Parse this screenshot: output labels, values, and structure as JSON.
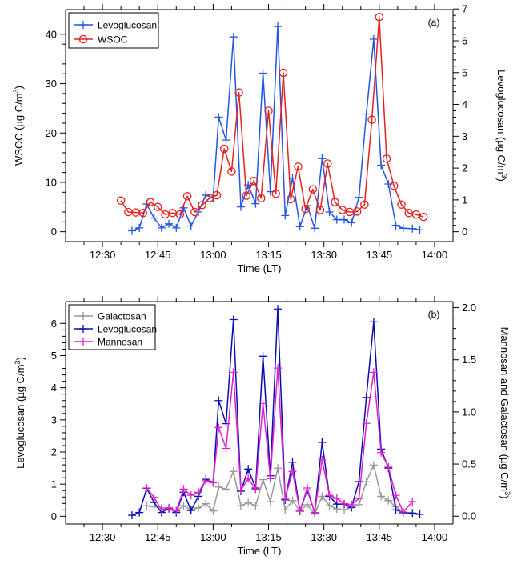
{
  "chart_data": [
    {
      "panel": "(a)",
      "type": "line",
      "xlabel": "Time (LT)",
      "ylabel_left": "WSOC (µg C/m3)",
      "ylabel_right": "Levoglucosan (µg C/m3)",
      "ylabel_left_parts": {
        "pre": "WSOC (",
        "mu": "µ",
        "mid": "g C/m",
        "sup": "3",
        "post": ")"
      },
      "ylabel_right_parts": {
        "pre": "Levoglucosan (",
        "mu": "µ",
        "mid": "g C/m",
        "sup": "3",
        "post": ")"
      },
      "xlim": [
        740,
        845
      ],
      "ylim_left": [
        -2,
        45
      ],
      "ylim_right": [
        -0.31,
        6.98
      ],
      "xticks": [
        {
          "v": 750,
          "label": "12:30"
        },
        {
          "v": 765,
          "label": "12:45"
        },
        {
          "v": 780,
          "label": "13:00"
        },
        {
          "v": 795,
          "label": "13:15"
        },
        {
          "v": 810,
          "label": "13:30"
        },
        {
          "v": 825,
          "label": "13:45"
        },
        {
          "v": 840,
          "label": "14:00"
        }
      ],
      "xticks_minor": [
        745,
        755,
        760,
        770,
        775,
        785,
        790,
        800,
        805,
        815,
        820,
        830,
        835
      ],
      "yticks_left": [
        0,
        10,
        20,
        30,
        40
      ],
      "yticks_right": [
        0,
        1,
        2,
        3,
        4,
        5,
        6,
        7
      ],
      "legend_position": "top-left",
      "series": [
        {
          "name": "Levoglucosan",
          "axis": "right",
          "marker": "plus",
          "color": "#2255e8",
          "x": [
            758,
            760,
            762,
            764,
            766,
            768,
            770,
            772,
            774,
            776,
            778,
            780,
            781.5,
            783.5,
            785.5,
            787.5,
            789.5,
            791.5,
            793.5,
            795.5,
            797.5,
            799.5,
            801.5,
            803.5,
            805.5,
            807.5,
            809.5,
            811.5,
            813.5,
            815.5,
            817.5,
            819.5,
            821.5,
            823.5,
            825.5,
            827.5,
            829.5,
            831.5,
            834,
            836
          ],
          "y": [
            0.03,
            0.12,
            0.87,
            0.43,
            0.12,
            0.25,
            0.12,
            0.75,
            0.18,
            0.62,
            1.15,
            1.06,
            3.6,
            2.88,
            6.12,
            0.78,
            1.47,
            0.88,
            4.98,
            1.26,
            6.45,
            0.51,
            1.68,
            0.16,
            0.82,
            0.11,
            2.3,
            0.62,
            0.38,
            0.38,
            0.28,
            1.08,
            3.7,
            6.05,
            2.09,
            1.5,
            0.2,
            0.11,
            0.1,
            0.06
          ]
        },
        {
          "name": "WSOC",
          "axis": "left",
          "marker": "circle",
          "color": "#e8201e",
          "x": [
            755,
            757,
            759,
            761,
            763,
            765,
            767,
            769,
            771,
            773,
            775,
            777,
            779,
            781,
            783,
            785,
            787,
            789,
            791,
            793,
            795,
            797,
            799,
            801,
            803,
            805,
            807,
            809,
            811,
            813,
            815,
            817,
            819,
            821,
            823,
            825,
            827,
            829,
            831,
            833,
            835,
            837
          ],
          "y": [
            6.3,
            4.0,
            3.9,
            3.8,
            6.0,
            5.0,
            3.5,
            3.8,
            3.5,
            7.2,
            4.0,
            5.4,
            6.8,
            7.4,
            16.8,
            12.2,
            28.2,
            7.3,
            10.3,
            6.8,
            24.5,
            7.7,
            32.2,
            6.6,
            13.2,
            4.6,
            8.6,
            4.4,
            13.8,
            6.0,
            4.4,
            4.0,
            4.1,
            5.5,
            22.7,
            43.5,
            14.8,
            9.3,
            5.5,
            3.8,
            3.5,
            3.0
          ]
        }
      ]
    },
    {
      "panel": "(b)",
      "type": "line",
      "xlabel": "Time (LT)",
      "ylabel_left": "Levoglucosan (µg C/m3)",
      "ylabel_right": "Mannosan and Galactosan (µg C/m3)",
      "ylabel_left_parts": {
        "pre": "Levoglucosan (",
        "mu": "µ",
        "mid": "g C/m",
        "sup": "3",
        "post": ")"
      },
      "ylabel_right_parts": {
        "pre": "Mannosan and Galactosan (",
        "mu": "µ",
        "mid": "g C/m",
        "sup": "3",
        "post": ")"
      },
      "xlim": [
        740,
        845
      ],
      "ylim_left": [
        -0.24,
        6.68
      ],
      "ylim_right": [
        -0.075,
        2.058
      ],
      "xticks": [
        {
          "v": 750,
          "label": "12:30"
        },
        {
          "v": 765,
          "label": "12:45"
        },
        {
          "v": 780,
          "label": "13:00"
        },
        {
          "v": 795,
          "label": "13:15"
        },
        {
          "v": 810,
          "label": "13:30"
        },
        {
          "v": 825,
          "label": "13:45"
        },
        {
          "v": 840,
          "label": "14:00"
        }
      ],
      "xticks_minor": [
        745,
        755,
        760,
        770,
        775,
        785,
        790,
        800,
        805,
        815,
        820,
        830,
        835
      ],
      "yticks_left": [
        0,
        1,
        2,
        3,
        4,
        5,
        6
      ],
      "yticks_right": [
        {
          "v": 0,
          "label": "0.0"
        },
        {
          "v": 0.5,
          "label": "0.5"
        },
        {
          "v": 1.0,
          "label": "1.0"
        },
        {
          "v": 1.5,
          "label": "1.5"
        },
        {
          "v": 2.0,
          "label": "2.0"
        }
      ],
      "legend_position": "top-left",
      "series": [
        {
          "name": "Galactosan",
          "axis": "right",
          "marker": "plus",
          "color": "#999999",
          "x": [
            762,
            764,
            766,
            768,
            770,
            772,
            774,
            776,
            778,
            780,
            781.5,
            783.5,
            785.5,
            787.5,
            789.5,
            791.5,
            793.5,
            795.5,
            797.5,
            799.5,
            801.5,
            803.5,
            805.5,
            807.5,
            809.5,
            811.5,
            813.5,
            815.5,
            817.5,
            819.5,
            821.5,
            823.5,
            825.5,
            827.5,
            829.5,
            831.5
          ],
          "y": [
            0.1,
            0.09,
            0.08,
            0.07,
            0.05,
            0.1,
            0.06,
            0.08,
            0.12,
            0.05,
            0.28,
            0.26,
            0.43,
            0.1,
            0.13,
            0.1,
            0.35,
            0.14,
            0.46,
            0.06,
            0.15,
            0.05,
            0.11,
            0.02,
            0.19,
            0.1,
            0.07,
            0.06,
            0.08,
            0.11,
            0.33,
            0.49,
            0.19,
            0.15,
            0.09,
            0.04
          ]
        },
        {
          "name": "Levoglucosan",
          "axis": "left",
          "marker": "plus",
          "color": "#0b0bb3",
          "x": [
            758,
            760,
            762,
            764,
            766,
            768,
            770,
            772,
            774,
            776,
            778,
            780,
            781.5,
            783.5,
            785.5,
            787.5,
            789.5,
            791.5,
            793.5,
            795.5,
            797.5,
            799.5,
            801.5,
            803.5,
            805.5,
            807.5,
            809.5,
            811.5,
            813.5,
            815.5,
            817.5,
            819.5,
            821.5,
            823.5,
            825.5,
            827.5,
            829.5,
            831.5,
            834,
            836
          ],
          "y": [
            0.03,
            0.12,
            0.87,
            0.43,
            0.12,
            0.25,
            0.12,
            0.75,
            0.18,
            0.62,
            1.15,
            1.06,
            3.6,
            2.88,
            6.12,
            0.78,
            1.47,
            0.88,
            4.98,
            1.26,
            6.45,
            0.51,
            1.68,
            0.16,
            0.82,
            0.11,
            2.3,
            0.62,
            0.38,
            0.38,
            0.28,
            1.08,
            3.7,
            6.05,
            2.09,
            1.5,
            0.2,
            0.11,
            0.1,
            0.06
          ]
        },
        {
          "name": "Mannosan",
          "axis": "right",
          "marker": "plus",
          "color": "#e21fcf",
          "x": [
            762,
            764,
            766,
            768,
            770,
            772,
            774,
            776,
            778,
            780,
            781.5,
            783.5,
            785.5,
            787.5,
            789.5,
            791.5,
            793.5,
            795.5,
            797.5,
            799.5,
            801.5,
            803.5,
            805.5,
            807.5,
            809.5,
            811.5,
            813.5,
            815.5,
            817.5,
            819.5,
            821.5,
            823.5,
            825.5,
            827.5,
            829.5,
            831.5,
            834
          ],
          "y": [
            0.27,
            0.18,
            0.06,
            0.08,
            0.05,
            0.26,
            0.2,
            0.23,
            0.34,
            0.32,
            0.85,
            0.65,
            1.38,
            0.25,
            0.36,
            0.26,
            1.08,
            0.36,
            1.42,
            0.17,
            0.43,
            0.05,
            0.27,
            0.03,
            0.54,
            0.2,
            0.17,
            0.12,
            0.11,
            0.17,
            0.89,
            1.38,
            0.61,
            0.47,
            0.2,
            0.04,
            0.14
          ]
        }
      ]
    }
  ]
}
